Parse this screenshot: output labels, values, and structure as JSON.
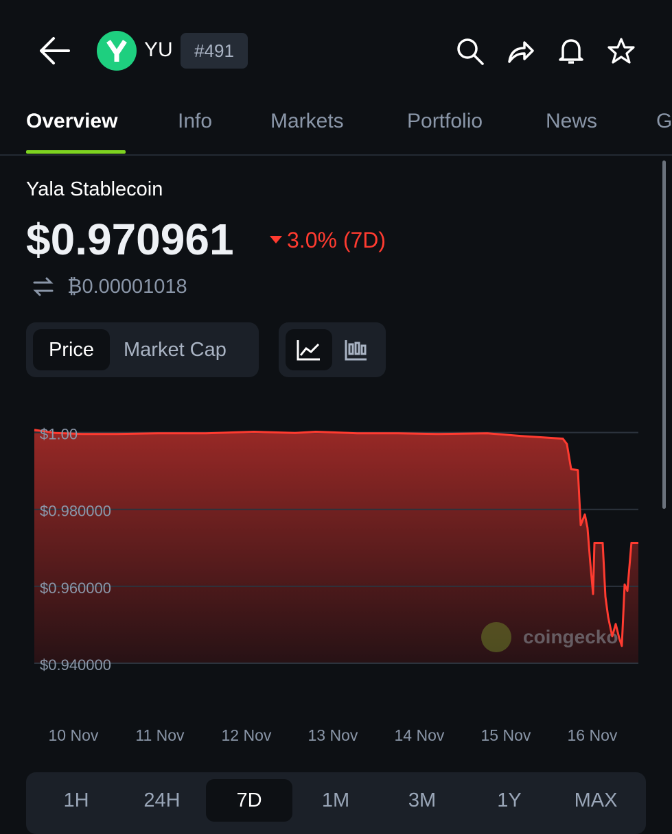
{
  "header": {
    "symbol": "YU",
    "rank": "#491"
  },
  "tabs": [
    "Overview",
    "Info",
    "Markets",
    "Portfolio",
    "News",
    "G"
  ],
  "coin": {
    "name": "Yala Stablecoin",
    "price": "$0.970961",
    "change": "3.0% (7D)",
    "btc_price": "₿0.00001018"
  },
  "chart_toggle": [
    "Price",
    "Market Cap"
  ],
  "timeframes": [
    "1H",
    "24H",
    "7D",
    "1M",
    "3M",
    "1Y",
    "MAX"
  ],
  "chart_data": {
    "type": "area",
    "watermark": "coingecko",
    "x": [
      9.548,
      9.786,
      10.103,
      10.5,
      10.976,
      11.532,
      12.087,
      12.563,
      12.802,
      13.278,
      13.754,
      14.23,
      14.786,
      15.183,
      15.659,
      15.706,
      15.754,
      15.833,
      15.865,
      15.913,
      15.944,
      15.976,
      16.008,
      16.024,
      16.119,
      16.151,
      16.183,
      16.23,
      16.27,
      16.31,
      16.341,
      16.373,
      16.405,
      16.452,
      16.532
    ],
    "series": [
      {
        "color": "#ff3b30",
        "values": [
          1.0007,
          0.9999,
          0.9996,
          0.9996,
          0.9998,
          0.9998,
          1.0002,
          0.9999,
          1.0002,
          0.9998,
          0.9998,
          0.9996,
          0.9998,
          0.9991,
          0.9984,
          0.997,
          0.9905,
          0.9902,
          0.9759,
          0.9787,
          0.9752,
          0.9662,
          0.958,
          0.9713,
          0.9713,
          0.9573,
          0.952,
          0.947,
          0.9502,
          0.9466,
          0.9445,
          0.9605,
          0.9588,
          0.9713,
          0.9713
        ]
      }
    ],
    "xlim": [
      9.548,
      16.532
    ],
    "xticks": [
      {
        "value": 10,
        "label": "10 Nov"
      },
      {
        "value": 11,
        "label": "11 Nov"
      },
      {
        "value": 12,
        "label": "12 Nov"
      },
      {
        "value": 13,
        "label": "13 Nov"
      },
      {
        "value": 14,
        "label": "14 Nov"
      },
      {
        "value": 15,
        "label": "15 Nov"
      },
      {
        "value": 16,
        "label": "16 Nov"
      }
    ],
    "ylim": [
      0.94,
      1.001
    ],
    "yticks": [
      {
        "value": 1,
        "label": "$1.00"
      },
      {
        "value": 0.98,
        "label": "$0.980000"
      },
      {
        "value": 0.96,
        "label": "$0.960000"
      },
      {
        "value": 0.94,
        "label": "$0.940000"
      }
    ],
    "grid": true
  }
}
